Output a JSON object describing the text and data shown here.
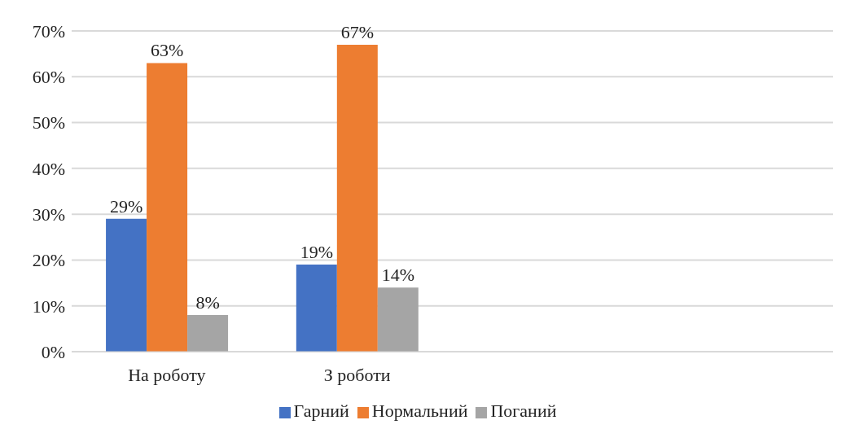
{
  "chart_data": {
    "type": "bar",
    "categories": [
      "На роботу",
      "З роботи",
      null,
      null
    ],
    "series": [
      {
        "name": "Гарний",
        "color": "#4472c4",
        "values": [
          29,
          19,
          null,
          null
        ],
        "value_labels": [
          "29%",
          "19%",
          null,
          null
        ]
      },
      {
        "name": "Нормальний",
        "color": "#ed7d31",
        "values": [
          63,
          67,
          null,
          null
        ],
        "value_labels": [
          "63%",
          "67%",
          null,
          null
        ]
      },
      {
        "name": "Поганий",
        "color": "#a5a5a5",
        "values": [
          8,
          14,
          null,
          null
        ],
        "value_labels": [
          "8%",
          "14%",
          null,
          null
        ]
      }
    ],
    "ylim": [
      0,
      70
    ],
    "yticks": [
      {
        "value": 0,
        "label": "0%"
      },
      {
        "value": 10,
        "label": "10%"
      },
      {
        "value": 20,
        "label": "20%"
      },
      {
        "value": 30,
        "label": "30%"
      },
      {
        "value": 40,
        "label": "40%"
      },
      {
        "value": 50,
        "label": "50%"
      },
      {
        "value": 60,
        "label": "60%"
      },
      {
        "value": 70,
        "label": "70%"
      }
    ],
    "grid": "y",
    "legend": "bottom"
  }
}
